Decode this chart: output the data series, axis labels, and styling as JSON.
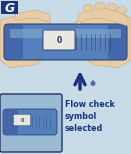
{
  "bg_color": "#c8dce8",
  "title_box_color": "#1a3580",
  "title_text_color": "#ffffff",
  "hand_color": "#e8cca8",
  "hand_shadow": "#c8a880",
  "device_color": "#5580bb",
  "device_mid": "#4466aa",
  "device_dark": "#223366",
  "device_light": "#88aad0",
  "window_color": "#f0f0f0",
  "window_border": "#334466",
  "flow_symbol_color": "#334488",
  "text_main": "Flow check\nsymbol\nselected",
  "text_color": "#1a3580",
  "text_fontsize": 5.8,
  "arrow_color": "#1a3580",
  "inset_bg": "#99bbd4",
  "inset_border": "#223366",
  "dot_color": "#3355aa"
}
